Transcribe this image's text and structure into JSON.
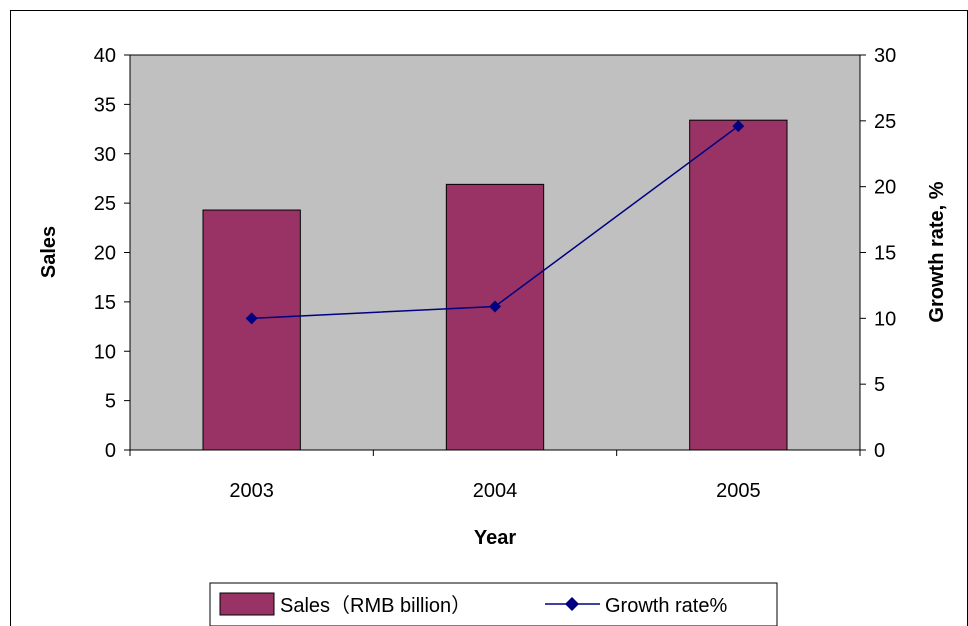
{
  "chart_data": {
    "type": "bar",
    "categories": [
      "2003",
      "2004",
      "2005"
    ],
    "series": [
      {
        "name": "Sales（RMB billion）",
        "type": "bar",
        "axis": "left",
        "values": [
          24.3,
          26.9,
          33.4
        ]
      },
      {
        "name": "Growth rate%",
        "type": "line",
        "axis": "right",
        "values": [
          10.0,
          10.9,
          24.6
        ]
      }
    ],
    "xlabel": "Year",
    "ylabel": "Sales",
    "y2label": "Growth rate, %",
    "ylim": [
      0,
      40
    ],
    "y2lim": [
      0,
      30
    ],
    "yticks": [
      "0",
      "5",
      "10",
      "15",
      "20",
      "25",
      "30",
      "35",
      "40"
    ],
    "y2ticks": [
      "0",
      "5",
      "10",
      "15",
      "20",
      "25",
      "30"
    ],
    "legend_position": "bottom",
    "colors": {
      "bar": "#993366",
      "line": "#000080",
      "plot_bg": "#c0c0c0"
    }
  }
}
